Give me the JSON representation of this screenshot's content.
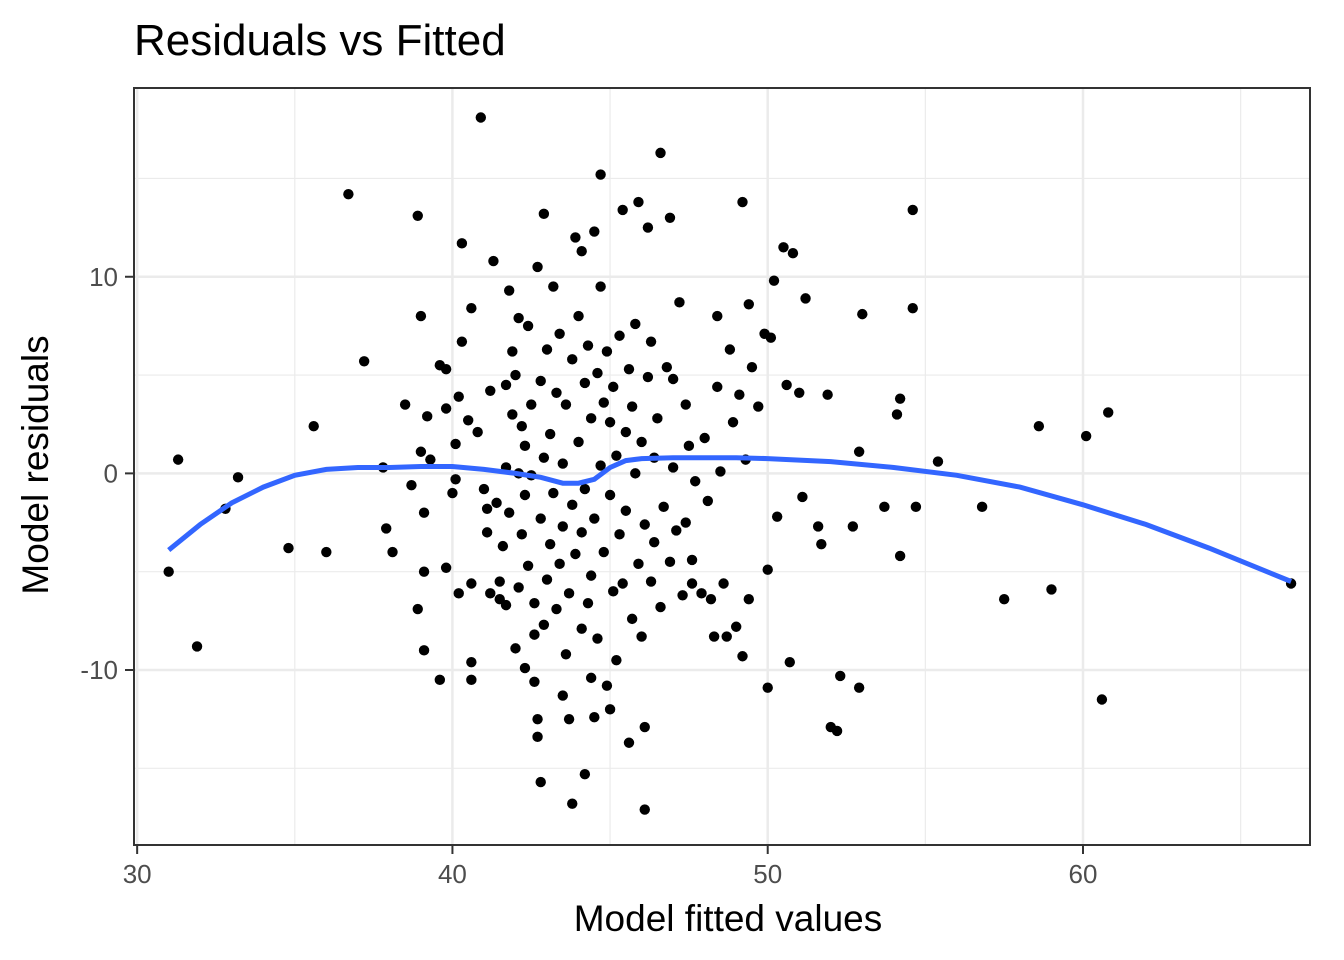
{
  "chart_data": {
    "type": "scatter",
    "title": "Residuals vs Fitted",
    "xlabel": "Model fitted values",
    "ylabel": "Model residuals",
    "xlim": [
      29.9,
      67.2
    ],
    "ylim": [
      -18.9,
      19.6
    ],
    "x_ticks": [
      30,
      40,
      50,
      60
    ],
    "y_ticks": [
      -10,
      0,
      10
    ],
    "x_tick_labels": [
      "30",
      "40",
      "50",
      "60"
    ],
    "y_tick_labels": [
      "-10",
      "0",
      "10"
    ],
    "grid": true,
    "colors": {
      "points": "#000000",
      "smooth": "#3366FF",
      "grid": "#EBEBEB",
      "panel_border": "#333333"
    },
    "points": [
      [
        31.0,
        -5.0
      ],
      [
        31.3,
        0.7
      ],
      [
        31.9,
        -8.8
      ],
      [
        32.8,
        -1.8
      ],
      [
        33.2,
        -0.2
      ],
      [
        34.8,
        -3.8
      ],
      [
        35.6,
        2.4
      ],
      [
        36.0,
        -4.0
      ],
      [
        36.7,
        14.2
      ],
      [
        37.2,
        5.7
      ],
      [
        37.8,
        0.3
      ],
      [
        37.9,
        -2.8
      ],
      [
        38.1,
        -4.0
      ],
      [
        38.5,
        3.5
      ],
      [
        38.7,
        -0.6
      ],
      [
        38.9,
        13.1
      ],
      [
        38.9,
        -6.9
      ],
      [
        39.0,
        8.0
      ],
      [
        39.0,
        1.1
      ],
      [
        39.1,
        -2.0
      ],
      [
        39.1,
        -5.0
      ],
      [
        39.1,
        -9.0
      ],
      [
        39.2,
        2.9
      ],
      [
        39.3,
        0.7
      ],
      [
        39.6,
        -10.5
      ],
      [
        39.6,
        5.5
      ],
      [
        39.8,
        5.3
      ],
      [
        39.8,
        3.3
      ],
      [
        39.8,
        -4.8
      ],
      [
        40.0,
        -1.0
      ],
      [
        40.1,
        1.5
      ],
      [
        40.1,
        -0.3
      ],
      [
        40.2,
        -6.1
      ],
      [
        40.2,
        3.9
      ],
      [
        40.3,
        6.7
      ],
      [
        40.3,
        11.7
      ],
      [
        40.5,
        2.7
      ],
      [
        40.6,
        -9.6
      ],
      [
        40.6,
        -10.5
      ],
      [
        40.6,
        -5.6
      ],
      [
        40.6,
        8.4
      ],
      [
        40.8,
        2.1
      ],
      [
        40.9,
        18.1
      ],
      [
        41.0,
        -0.8
      ],
      [
        41.1,
        -1.8
      ],
      [
        41.1,
        -3.0
      ],
      [
        41.2,
        -6.1
      ],
      [
        41.2,
        4.2
      ],
      [
        41.3,
        10.8
      ],
      [
        41.4,
        -1.5
      ],
      [
        41.5,
        -6.4
      ],
      [
        41.5,
        -5.5
      ],
      [
        41.6,
        -3.7
      ],
      [
        41.7,
        0.3
      ],
      [
        41.7,
        4.5
      ],
      [
        41.7,
        -6.7
      ],
      [
        41.8,
        9.3
      ],
      [
        41.8,
        -2.0
      ],
      [
        41.9,
        6.2
      ],
      [
        41.9,
        3.0
      ],
      [
        42.0,
        -8.9
      ],
      [
        42.0,
        5.0
      ],
      [
        42.1,
        0.0
      ],
      [
        42.1,
        -5.8
      ],
      [
        42.1,
        7.9
      ],
      [
        42.2,
        2.4
      ],
      [
        42.2,
        -3.1
      ],
      [
        42.3,
        -9.9
      ],
      [
        42.3,
        1.4
      ],
      [
        42.3,
        -1.1
      ],
      [
        42.4,
        7.5
      ],
      [
        42.4,
        -4.7
      ],
      [
        42.5,
        3.5
      ],
      [
        42.5,
        -0.1
      ],
      [
        42.6,
        -8.2
      ],
      [
        42.6,
        -10.6
      ],
      [
        42.6,
        -6.6
      ],
      [
        42.7,
        -12.5
      ],
      [
        42.7,
        -13.4
      ],
      [
        42.7,
        10.5
      ],
      [
        42.8,
        -15.7
      ],
      [
        42.8,
        4.7
      ],
      [
        42.8,
        -2.3
      ],
      [
        42.9,
        -7.7
      ],
      [
        42.9,
        13.2
      ],
      [
        42.9,
        0.8
      ],
      [
        43.0,
        -5.4
      ],
      [
        43.0,
        6.3
      ],
      [
        43.1,
        -3.6
      ],
      [
        43.1,
        2.0
      ],
      [
        43.2,
        -1.0
      ],
      [
        43.2,
        9.5
      ],
      [
        43.3,
        -6.9
      ],
      [
        43.3,
        4.1
      ],
      [
        43.4,
        -4.6
      ],
      [
        43.4,
        7.1
      ],
      [
        43.5,
        -11.3
      ],
      [
        43.5,
        -2.7
      ],
      [
        43.5,
        0.5
      ],
      [
        43.6,
        3.5
      ],
      [
        43.6,
        -9.2
      ],
      [
        43.7,
        -12.5
      ],
      [
        43.7,
        -6.1
      ],
      [
        43.8,
        -16.8
      ],
      [
        43.8,
        5.8
      ],
      [
        43.8,
        -1.6
      ],
      [
        43.9,
        12.0
      ],
      [
        43.9,
        -4.1
      ],
      [
        44.0,
        8.0
      ],
      [
        44.0,
        1.6
      ],
      [
        44.1,
        -7.9
      ],
      [
        44.1,
        -3.0
      ],
      [
        44.1,
        11.3
      ],
      [
        44.2,
        -15.3
      ],
      [
        44.2,
        4.6
      ],
      [
        44.2,
        -0.8
      ],
      [
        44.3,
        -6.6
      ],
      [
        44.3,
        6.5
      ],
      [
        44.4,
        -10.4
      ],
      [
        44.4,
        -5.2
      ],
      [
        44.4,
        2.8
      ],
      [
        44.5,
        12.3
      ],
      [
        44.5,
        -12.4
      ],
      [
        44.5,
        -2.3
      ],
      [
        44.6,
        5.1
      ],
      [
        44.6,
        -8.4
      ],
      [
        44.7,
        0.4
      ],
      [
        44.7,
        9.5
      ],
      [
        44.7,
        15.2
      ],
      [
        44.8,
        -4.0
      ],
      [
        44.8,
        3.6
      ],
      [
        44.9,
        -10.8
      ],
      [
        44.9,
        6.2
      ],
      [
        45.0,
        -1.1
      ],
      [
        45.0,
        -12.0
      ],
      [
        45.0,
        2.6
      ],
      [
        45.1,
        -6.0
      ],
      [
        45.1,
        4.4
      ],
      [
        45.2,
        -9.5
      ],
      [
        45.2,
        0.9
      ],
      [
        45.3,
        -3.1
      ],
      [
        45.3,
        7.0
      ],
      [
        45.4,
        -5.6
      ],
      [
        45.4,
        13.4
      ],
      [
        45.5,
        2.1
      ],
      [
        45.5,
        -1.9
      ],
      [
        45.6,
        5.3
      ],
      [
        45.6,
        -13.7
      ],
      [
        45.7,
        -7.4
      ],
      [
        45.7,
        3.4
      ],
      [
        45.8,
        0.0
      ],
      [
        45.8,
        7.6
      ],
      [
        45.9,
        -4.6
      ],
      [
        45.9,
        13.8
      ],
      [
        46.0,
        1.6
      ],
      [
        46.0,
        -8.3
      ],
      [
        46.1,
        -17.1
      ],
      [
        46.1,
        -12.9
      ],
      [
        46.1,
        -2.6
      ],
      [
        46.2,
        4.9
      ],
      [
        46.2,
        12.5
      ],
      [
        46.3,
        -5.5
      ],
      [
        46.3,
        6.7
      ],
      [
        46.4,
        0.8
      ],
      [
        46.4,
        -3.5
      ],
      [
        46.5,
        2.8
      ],
      [
        46.6,
        16.3
      ],
      [
        46.6,
        -6.8
      ],
      [
        46.7,
        -1.7
      ],
      [
        46.8,
        5.4
      ],
      [
        46.9,
        13.0
      ],
      [
        46.9,
        -4.5
      ],
      [
        47.0,
        0.3
      ],
      [
        47.0,
        4.8
      ],
      [
        47.1,
        -2.9
      ],
      [
        47.2,
        8.7
      ],
      [
        47.3,
        -6.2
      ],
      [
        47.4,
        3.5
      ],
      [
        47.4,
        -2.5
      ],
      [
        47.5,
        1.4
      ],
      [
        47.6,
        -5.6
      ],
      [
        47.6,
        -4.4
      ],
      [
        47.7,
        -0.4
      ],
      [
        47.9,
        -6.1
      ],
      [
        48.0,
        1.8
      ],
      [
        48.1,
        -1.4
      ],
      [
        48.2,
        -6.4
      ],
      [
        48.3,
        -8.3
      ],
      [
        48.4,
        4.4
      ],
      [
        48.4,
        8.0
      ],
      [
        48.5,
        0.1
      ],
      [
        48.6,
        -5.6
      ],
      [
        48.7,
        -8.3
      ],
      [
        48.8,
        6.3
      ],
      [
        48.9,
        2.6
      ],
      [
        49.0,
        -7.8
      ],
      [
        49.1,
        4.0
      ],
      [
        49.2,
        13.8
      ],
      [
        49.2,
        -9.3
      ],
      [
        49.3,
        0.7
      ],
      [
        49.4,
        8.6
      ],
      [
        49.4,
        -6.4
      ],
      [
        49.5,
        5.4
      ],
      [
        49.7,
        3.4
      ],
      [
        49.9,
        7.1
      ],
      [
        50.0,
        -4.9
      ],
      [
        50.0,
        -10.9
      ],
      [
        50.1,
        6.9
      ],
      [
        50.2,
        9.8
      ],
      [
        50.3,
        -2.2
      ],
      [
        50.5,
        11.5
      ],
      [
        50.6,
        4.5
      ],
      [
        50.7,
        -9.6
      ],
      [
        50.8,
        11.2
      ],
      [
        51.0,
        4.1
      ],
      [
        51.1,
        -1.2
      ],
      [
        51.2,
        8.9
      ],
      [
        51.6,
        -2.7
      ],
      [
        51.7,
        -3.6
      ],
      [
        51.9,
        4.0
      ],
      [
        52.0,
        -12.9
      ],
      [
        52.2,
        -13.1
      ],
      [
        52.3,
        -10.3
      ],
      [
        52.7,
        -2.7
      ],
      [
        52.9,
        1.1
      ],
      [
        52.9,
        -10.9
      ],
      [
        53.0,
        8.1
      ],
      [
        53.7,
        -1.7
      ],
      [
        54.1,
        3.0
      ],
      [
        54.2,
        3.8
      ],
      [
        54.2,
        -4.2
      ],
      [
        54.6,
        8.4
      ],
      [
        54.6,
        13.4
      ],
      [
        54.7,
        -1.7
      ],
      [
        55.4,
        0.6
      ],
      [
        56.8,
        -1.7
      ],
      [
        57.5,
        -6.4
      ],
      [
        58.6,
        2.4
      ],
      [
        59.0,
        -5.9
      ],
      [
        60.1,
        1.9
      ],
      [
        60.6,
        -11.5
      ],
      [
        60.8,
        3.1
      ],
      [
        66.6,
        -5.6
      ]
    ],
    "smooth": [
      [
        31.0,
        -3.9
      ],
      [
        32.0,
        -2.6
      ],
      [
        33.0,
        -1.5
      ],
      [
        34.0,
        -0.7
      ],
      [
        35.0,
        -0.1
      ],
      [
        36.0,
        0.2
      ],
      [
        37.0,
        0.3
      ],
      [
        38.0,
        0.3
      ],
      [
        39.0,
        0.35
      ],
      [
        40.0,
        0.35
      ],
      [
        41.0,
        0.2
      ],
      [
        42.0,
        0.0
      ],
      [
        42.8,
        -0.2
      ],
      [
        43.5,
        -0.5
      ],
      [
        44.0,
        -0.5
      ],
      [
        44.5,
        -0.3
      ],
      [
        45.0,
        0.3
      ],
      [
        45.5,
        0.65
      ],
      [
        46.0,
        0.75
      ],
      [
        47.0,
        0.8
      ],
      [
        48.0,
        0.8
      ],
      [
        49.0,
        0.8
      ],
      [
        50.0,
        0.75
      ],
      [
        52.0,
        0.6
      ],
      [
        54.0,
        0.3
      ],
      [
        56.0,
        -0.1
      ],
      [
        58.0,
        -0.7
      ],
      [
        60.0,
        -1.6
      ],
      [
        62.0,
        -2.6
      ],
      [
        64.0,
        -3.8
      ],
      [
        66.6,
        -5.5
      ]
    ]
  }
}
